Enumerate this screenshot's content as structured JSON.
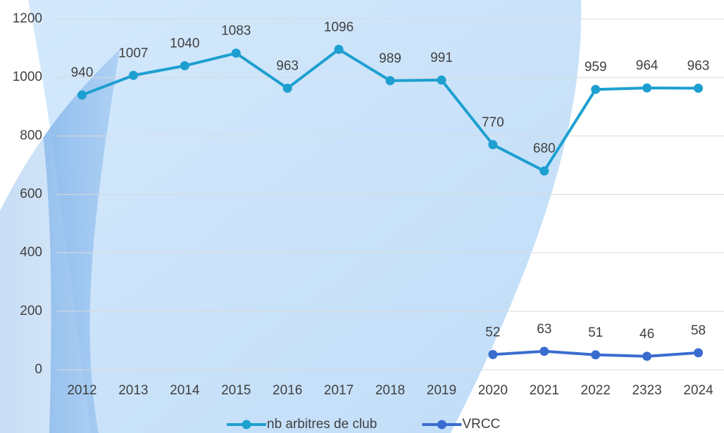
{
  "chart_data": {
    "type": "line",
    "categories": [
      "2012",
      "2013",
      "2014",
      "2015",
      "2016",
      "2017",
      "2018",
      "2019",
      "2020",
      "2021",
      "2022",
      "2323",
      "2024"
    ],
    "series": [
      {
        "name": "nb arbitres de club",
        "color": "#1d9fd0",
        "values": [
          940,
          1007,
          1040,
          1083,
          963,
          1096,
          989,
          991,
          770,
          680,
          959,
          964,
          963
        ]
      },
      {
        "name": "VRCC",
        "color": "#3a6cd0",
        "values": [
          null,
          null,
          null,
          null,
          null,
          null,
          null,
          null,
          52,
          63,
          51,
          46,
          58
        ]
      }
    ],
    "ylim": [
      0,
      1200
    ],
    "yticks": [
      0,
      200,
      400,
      600,
      800,
      1000,
      1200
    ],
    "grid": true,
    "legend": "bottom",
    "data_labels": true
  }
}
